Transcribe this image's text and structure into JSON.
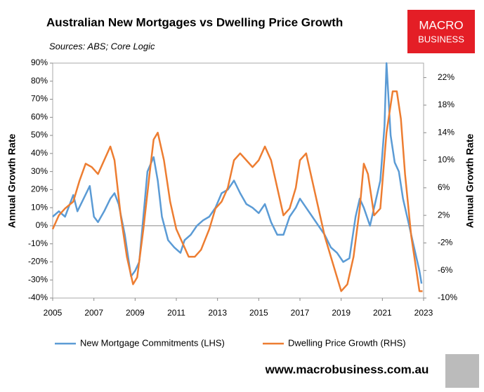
{
  "chart_data": {
    "type": "line",
    "title": "Australian New Mortgages vs Dwelling Price Growth",
    "subtitle": "Sources: ABS; Core Logic",
    "y_label": "Annual Growth Rate",
    "y2_label": "Annual Growth Rate",
    "brand": [
      "MACRO",
      "BUSINESS"
    ],
    "footer": "www.macrobusiness.com.au",
    "legend": "bottom",
    "xlim": [
      2005,
      2023
    ],
    "xticks": [
      2005,
      2007,
      2009,
      2011,
      2013,
      2015,
      2017,
      2019,
      2021,
      2023
    ],
    "ylim": [
      -40,
      90
    ],
    "yticks": [
      {
        "value": -40,
        "label": "-40%"
      },
      {
        "value": -30,
        "label": "-30%"
      },
      {
        "value": -20,
        "label": "-20%"
      },
      {
        "value": -10,
        "label": "-10%"
      },
      {
        "value": 0,
        "label": "0%"
      },
      {
        "value": 10,
        "label": "10%"
      },
      {
        "value": 20,
        "label": "20%"
      },
      {
        "value": 30,
        "label": "30%"
      },
      {
        "value": 40,
        "label": "40%"
      },
      {
        "value": 50,
        "label": "50%"
      },
      {
        "value": 60,
        "label": "60%"
      },
      {
        "value": 70,
        "label": "70%"
      },
      {
        "value": 80,
        "label": "80%"
      },
      {
        "value": 90,
        "label": "90%"
      }
    ],
    "y2lim": [
      -10,
      24.1
    ],
    "y2ticks": [
      {
        "value": -10,
        "label": "-10%"
      },
      {
        "value": -6,
        "label": "-6%"
      },
      {
        "value": -2,
        "label": "-2%"
      },
      {
        "value": 2,
        "label": "2%"
      },
      {
        "value": 6,
        "label": "6%"
      },
      {
        "value": 10,
        "label": "10%"
      },
      {
        "value": 14,
        "label": "14%"
      },
      {
        "value": 18,
        "label": "18%"
      },
      {
        "value": 22,
        "label": "22%"
      }
    ],
    "series": [
      {
        "name": "New Mortgage Commitments (LHS)",
        "color": "#5b9bd5",
        "axis": "y",
        "x": [
          2005.0,
          2005.3,
          2005.6,
          2006.0,
          2006.2,
          2006.5,
          2006.8,
          2007.0,
          2007.2,
          2007.5,
          2007.8,
          2008.0,
          2008.2,
          2008.5,
          2008.8,
          2009.0,
          2009.2,
          2009.4,
          2009.6,
          2009.9,
          2010.1,
          2010.3,
          2010.6,
          2010.9,
          2011.2,
          2011.4,
          2011.7,
          2012.0,
          2012.3,
          2012.6,
          2012.9,
          2013.2,
          2013.5,
          2013.8,
          2014.1,
          2014.4,
          2014.7,
          2015.0,
          2015.3,
          2015.6,
          2015.9,
          2016.2,
          2016.5,
          2016.8,
          2017.0,
          2017.3,
          2017.6,
          2017.9,
          2018.2,
          2018.5,
          2018.8,
          2019.1,
          2019.4,
          2019.7,
          2019.9,
          2020.1,
          2020.4,
          2020.7,
          2020.9,
          2021.1,
          2021.2,
          2021.4,
          2021.6,
          2021.8,
          2022.0,
          2022.3,
          2022.5,
          2022.8,
          2022.9
        ],
        "values": [
          5,
          8,
          5,
          17,
          8,
          15,
          22,
          5,
          2,
          8,
          15,
          18,
          12,
          -5,
          -28,
          -25,
          -20,
          5,
          30,
          38,
          25,
          5,
          -8,
          -12,
          -15,
          -8,
          -5,
          0,
          3,
          5,
          10,
          18,
          20,
          25,
          18,
          12,
          10,
          7,
          12,
          2,
          -5,
          -5,
          5,
          10,
          15,
          10,
          5,
          0,
          -5,
          -12,
          -15,
          -20,
          -18,
          5,
          15,
          10,
          0,
          15,
          25,
          55,
          90,
          50,
          35,
          30,
          15,
          0,
          -10,
          -25,
          -32
        ]
      },
      {
        "name": "Dwelling Price Growth (RHS)",
        "color": "#ed7d31",
        "axis": "y2",
        "x": [
          2005.0,
          2005.3,
          2005.6,
          2006.0,
          2006.3,
          2006.6,
          2006.9,
          2007.2,
          2007.5,
          2007.8,
          2008.0,
          2008.3,
          2008.6,
          2008.9,
          2009.1,
          2009.4,
          2009.7,
          2009.9,
          2010.1,
          2010.4,
          2010.7,
          2011.0,
          2011.3,
          2011.6,
          2011.9,
          2012.2,
          2012.6,
          2012.9,
          2013.2,
          2013.5,
          2013.8,
          2014.1,
          2014.4,
          2014.7,
          2015.0,
          2015.3,
          2015.6,
          2015.9,
          2016.2,
          2016.5,
          2016.8,
          2017.0,
          2017.3,
          2017.6,
          2017.9,
          2018.2,
          2018.5,
          2018.8,
          2019.0,
          2019.3,
          2019.6,
          2019.9,
          2020.1,
          2020.3,
          2020.6,
          2020.9,
          2021.2,
          2021.5,
          2021.7,
          2021.9,
          2022.1,
          2022.4,
          2022.6,
          2022.8,
          2022.95
        ],
        "values": [
          0,
          2,
          3,
          4,
          7,
          9.5,
          9,
          8,
          10,
          12,
          10,
          2,
          -4,
          -8,
          -7,
          0,
          8,
          13,
          14,
          10,
          4,
          0,
          -2,
          -4,
          -4,
          -3,
          0,
          3,
          4,
          6,
          10,
          11,
          10,
          9,
          10,
          12,
          10,
          6,
          2,
          3,
          6,
          10,
          11,
          7,
          3,
          -1,
          -4,
          -7,
          -9,
          -8,
          -4,
          3,
          9.5,
          8,
          2,
          3,
          14,
          20,
          20,
          16,
          8,
          -1,
          -5,
          -9,
          -9
        ]
      }
    ]
  }
}
